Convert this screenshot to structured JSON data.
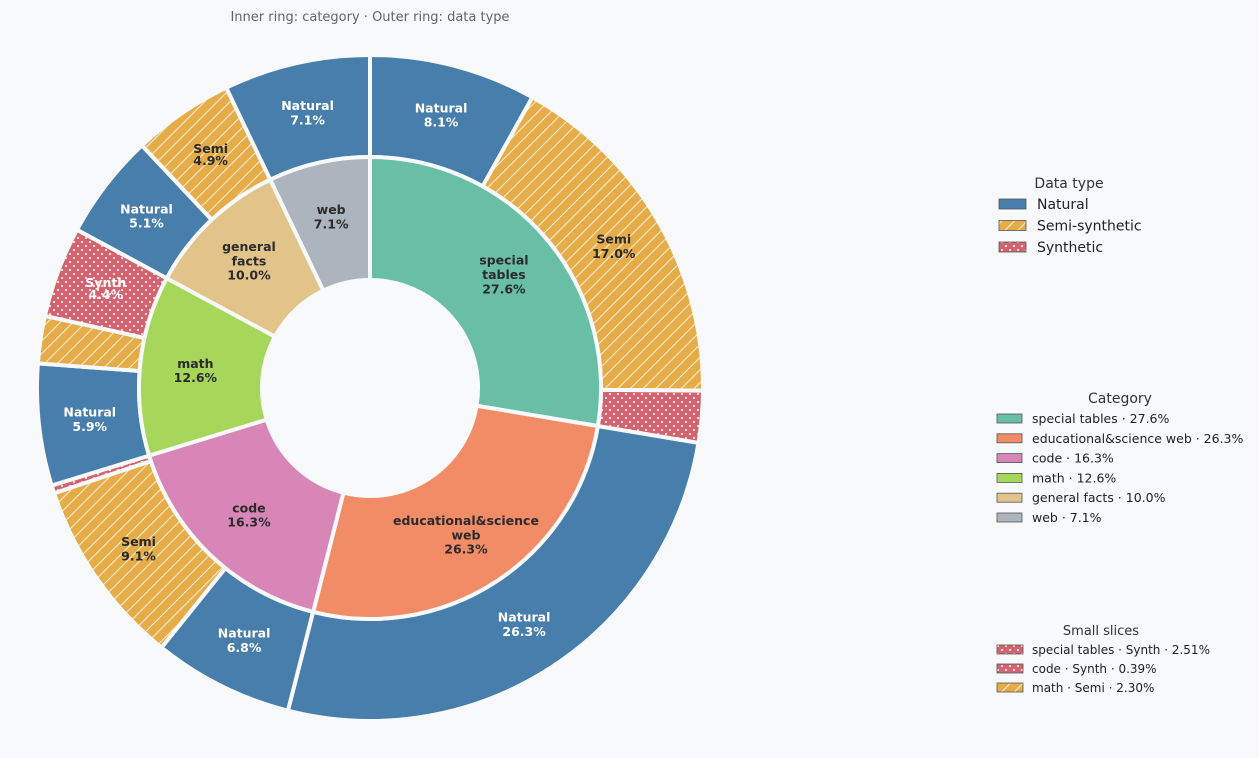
{
  "chart_data": {
    "type": "pie",
    "subtype": "nested-donut",
    "title": "Inner ring: category · Outer ring: data type",
    "inner_ring": [
      {
        "name": "special tables",
        "label": "special\ntables\n27.6%",
        "value": 27.6,
        "color": "#69bfa6"
      },
      {
        "name": "educational&science web",
        "label": "educational&science\nweb\n26.3%",
        "value": 26.3,
        "color": "#f28c66"
      },
      {
        "name": "code",
        "label": "code\n16.3%",
        "value": 16.3,
        "color": "#d886b8"
      },
      {
        "name": "math",
        "label": "math\n12.6%",
        "value": 12.6,
        "color": "#a6d75a"
      },
      {
        "name": "general facts",
        "label": "general\nfacts\n10.0%",
        "value": 10.0,
        "color": "#e2c38a"
      },
      {
        "name": "web",
        "label": "web\n7.1%",
        "value": 7.1,
        "color": "#acb4bd"
      }
    ],
    "outer_ring": [
      {
        "category": "special tables",
        "type": "Natural",
        "label": "Natural\n8.1%",
        "value": 8.1
      },
      {
        "category": "special tables",
        "type": "Semi-synthetic",
        "label": "Semi\n17.0%",
        "value": 17.0
      },
      {
        "category": "special tables",
        "type": "Synthetic",
        "label": "",
        "value": 2.51
      },
      {
        "category": "educational&science web",
        "type": "Natural",
        "label": "Natural\n26.3%",
        "value": 26.3
      },
      {
        "category": "code",
        "type": "Natural",
        "label": "Natural\n6.8%",
        "value": 6.8
      },
      {
        "category": "code",
        "type": "Semi-synthetic",
        "label": "Semi\n9.1%",
        "value": 9.1
      },
      {
        "category": "code",
        "type": "Synthetic",
        "label": "",
        "value": 0.39
      },
      {
        "category": "math",
        "type": "Natural",
        "label": "Natural\n5.9%",
        "value": 5.9
      },
      {
        "category": "math",
        "type": "Semi-synthetic",
        "label": "",
        "value": 2.3
      },
      {
        "category": "math",
        "type": "Synthetic",
        "label": "Synth\n4.4%",
        "value": 4.4
      },
      {
        "category": "general facts",
        "type": "Natural",
        "label": "Natural\n5.1%",
        "value": 5.1
      },
      {
        "category": "general facts",
        "type": "Semi-synthetic",
        "label": "Semi\n4.9%",
        "value": 4.9
      },
      {
        "category": "web",
        "type": "Natural",
        "label": "Natural\n7.1%",
        "value": 7.1
      }
    ],
    "type_styles": {
      "Natural": {
        "color": "#477eab",
        "pattern": "none",
        "label_color": "#ffffff"
      },
      "Semi-synthetic": {
        "color": "#e5ac48",
        "pattern": "hatch",
        "label_color": "#2a2a2a"
      },
      "Synthetic": {
        "color": "#d3636f",
        "pattern": "dots",
        "label_color": "#ffffff"
      }
    },
    "legends": {
      "data_type": {
        "title": "Data type",
        "items": [
          {
            "label": "Natural",
            "type": "Natural"
          },
          {
            "label": "Semi-synthetic",
            "type": "Semi-synthetic"
          },
          {
            "label": "Synthetic",
            "type": "Synthetic"
          }
        ]
      },
      "category": {
        "title": "Category",
        "items": [
          {
            "label": "special tables · 27.6%",
            "color": "#69bfa6"
          },
          {
            "label": "educational&science web · 26.3%",
            "color": "#f28c66"
          },
          {
            "label": "code · 16.3%",
            "color": "#d886b8"
          },
          {
            "label": "math · 12.6%",
            "color": "#a6d75a"
          },
          {
            "label": "general facts · 10.0%",
            "color": "#e2c38a"
          },
          {
            "label": "web · 7.1%",
            "color": "#acb4bd"
          }
        ]
      },
      "small_slices": {
        "title": "Small slices",
        "items": [
          {
            "label": "special tables · Synth · 2.51%",
            "type": "Synthetic"
          },
          {
            "label": "code · Synth · 0.39%",
            "type": "Synthetic"
          },
          {
            "label": "math · Semi · 2.30%",
            "type": "Semi-synthetic"
          }
        ]
      }
    },
    "background": "#f7f9fb"
  }
}
